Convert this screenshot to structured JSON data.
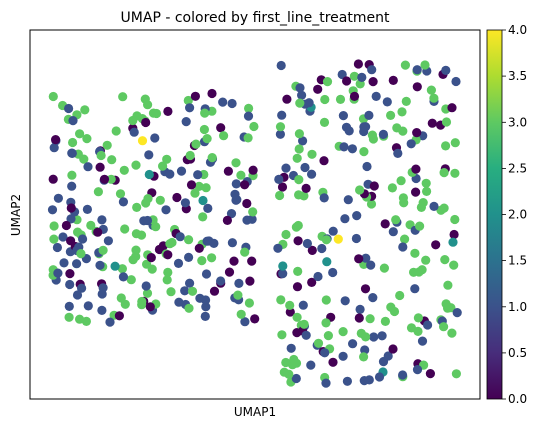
{
  "chart_data": {
    "type": "scatter",
    "title": "UMAP - colored by first_line_treatment",
    "xlabel": "UMAP1",
    "ylabel": "UMAP2",
    "colormap": "viridis",
    "color_range": [
      0,
      4
    ],
    "colorbar_ticks": [
      "0.0",
      "0.5",
      "1.0",
      "1.5",
      "2.0",
      "2.5",
      "3.0",
      "3.5",
      "4.0"
    ],
    "grid": false,
    "legend": "colorbar-right",
    "clusters": [
      {
        "x_range": [
          1,
          10
        ],
        "y_range": [
          2.5,
          10
        ],
        "share": 0.5
      },
      {
        "x_range": [
          11,
          19
        ],
        "y_range": [
          0.5,
          11
        ],
        "share": 0.5
      }
    ],
    "color_mix": {
      "0": 0.16,
      "1": 0.36,
      "3": 0.46,
      "2": 0.015,
      "4": 0.005
    },
    "highlight_points": [
      {
        "x": 5.0,
        "y": 8.4,
        "c": 4
      },
      {
        "x": 13.7,
        "y": 5.2,
        "c": 4
      },
      {
        "x": 5.3,
        "y": 7.3,
        "c": 2
      },
      {
        "x": 18.8,
        "y": 5.1,
        "c": 2
      }
    ]
  }
}
